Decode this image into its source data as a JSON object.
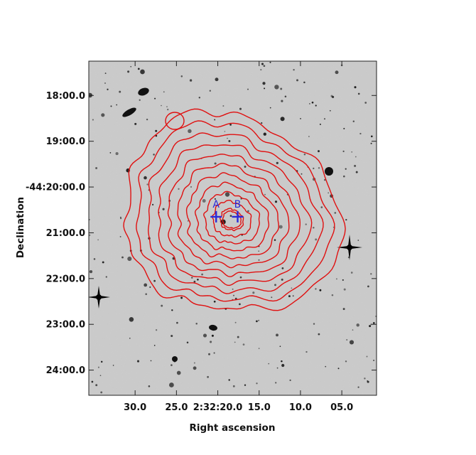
{
  "chart_data": {
    "type": "contour_overlay_image",
    "title": "",
    "xlabel": "Right ascension",
    "ylabel": "Declination",
    "x_ticks": [
      "30.0",
      "25.0",
      "2:32:20.0",
      "15.0",
      "10.0",
      "05.0"
    ],
    "y_ticks": [
      "18:00.0",
      "19:00.0",
      "-44:20:00.0",
      "21:00.0",
      "22:00.0",
      "23:00.0",
      "24:00.0"
    ],
    "x_tick_values": [
      30.0,
      25.0,
      20.0,
      15.0,
      10.0,
      5.0
    ],
    "y_tick_values": [
      18.0,
      19.0,
      20.0,
      21.0,
      22.0,
      23.0,
      24.0
    ],
    "xlim": [
      35.6,
      0.8
    ],
    "ylim": [
      24.55,
      17.25
    ],
    "grid": false,
    "contour_color": "#e01010",
    "marker_color": "#2b2bd8",
    "background": "grayscale optical image with stars and galaxies",
    "contour_center": {
      "x": 20.2,
      "y": 20.7
    },
    "contour_levels": 12,
    "markers": [
      {
        "label": "A",
        "x": 20.2,
        "y": 20.65
      },
      {
        "label": "B",
        "x": 17.6,
        "y": 20.65
      }
    ]
  }
}
